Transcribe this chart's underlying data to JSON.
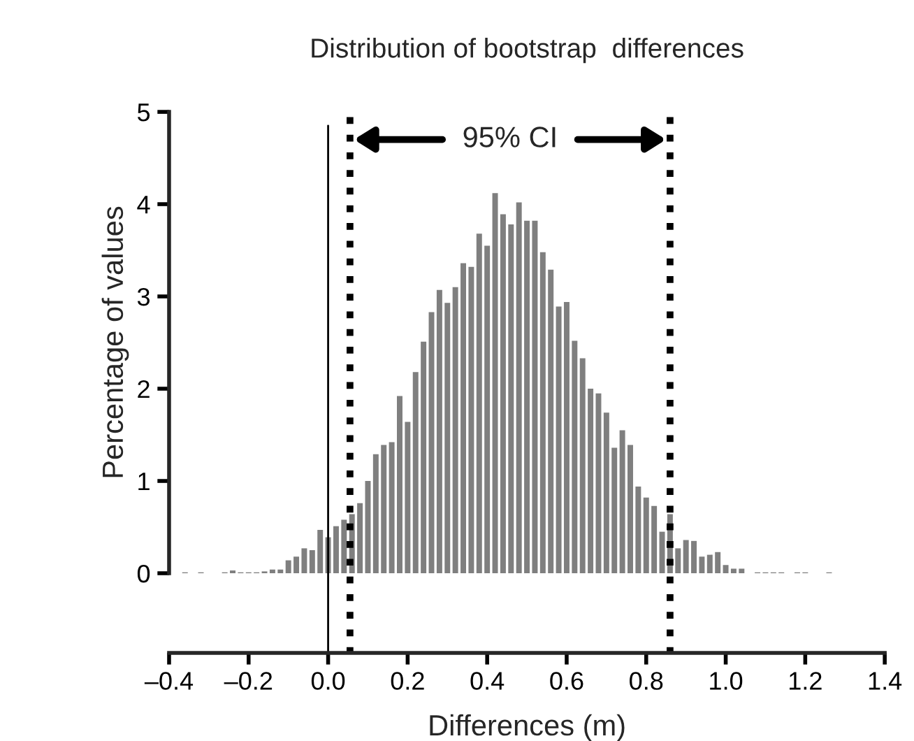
{
  "chart_data": {
    "type": "histogram",
    "title": "Distribution of bootstrap  differences",
    "xlabel": "Differences (m)",
    "ylabel": "Percentage of values",
    "bins": [
      -0.37,
      -0.35,
      -0.33,
      -0.31,
      -0.29,
      -0.27,
      -0.25,
      -0.23,
      -0.21,
      -0.19,
      -0.17,
      -0.15,
      -0.13,
      -0.11,
      -0.09,
      -0.07,
      -0.05,
      -0.03,
      -0.01,
      0.01,
      0.03,
      0.05,
      0.07,
      0.09,
      0.11,
      0.13,
      0.15,
      0.17,
      0.19,
      0.21,
      0.23,
      0.25,
      0.27,
      0.29,
      0.31,
      0.33,
      0.35,
      0.37,
      0.39,
      0.41,
      0.43,
      0.45,
      0.47,
      0.49,
      0.51,
      0.53,
      0.55,
      0.57,
      0.59,
      0.61,
      0.63,
      0.65,
      0.67,
      0.69,
      0.71,
      0.73,
      0.75,
      0.77,
      0.79,
      0.81,
      0.83,
      0.85,
      0.87,
      0.89,
      0.91,
      0.93,
      0.95,
      0.97,
      0.99,
      1.01,
      1.03,
      1.05,
      1.07,
      1.09,
      1.11,
      1.13,
      1.15,
      1.17,
      1.19,
      1.21,
      1.23,
      1.25,
      1.27
    ],
    "values": [
      0.01,
      0,
      0.01,
      0,
      0,
      0.01,
      0.03,
      0.01,
      0.01,
      0.01,
      0.02,
      0.04,
      0.04,
      0.14,
      0.18,
      0.27,
      0.25,
      0.47,
      0.39,
      0.51,
      0.58,
      0.64,
      0.76,
      1.0,
      1.29,
      1.39,
      1.42,
      1.92,
      1.64,
      2.18,
      2.51,
      2.83,
      3.07,
      2.93,
      3.1,
      3.36,
      3.32,
      3.68,
      3.55,
      4.12,
      3.89,
      3.78,
      4.02,
      3.82,
      3.82,
      3.48,
      3.29,
      2.89,
      2.94,
      2.52,
      2.33,
      2.0,
      1.95,
      1.74,
      1.36,
      1.55,
      1.39,
      0.94,
      0.82,
      0.73,
      0.45,
      0.64,
      0.27,
      0.36,
      0.35,
      0.18,
      0.2,
      0.23,
      0.09,
      0.05,
      0.05,
      0,
      0.01,
      0.01,
      0.01,
      0.01,
      0,
      0.01,
      0.01,
      0,
      0,
      0.01
    ],
    "color": "#7f7f7f",
    "xlim": [
      -0.4,
      1.4
    ],
    "xticks": [
      {
        "value": -0.4,
        "label": "–0.4"
      },
      {
        "value": -0.2,
        "label": "–0.2"
      },
      {
        "value": 0.0,
        "label": "0.0"
      },
      {
        "value": 0.2,
        "label": "0.2"
      },
      {
        "value": 0.4,
        "label": "0.4"
      },
      {
        "value": 0.6,
        "label": "0.6"
      },
      {
        "value": 0.8,
        "label": "0.8"
      },
      {
        "value": 1.0,
        "label": "1.0"
      },
      {
        "value": 1.2,
        "label": "1.2"
      },
      {
        "value": 1.4,
        "label": "1.4"
      }
    ],
    "ylim": [
      0,
      5
    ],
    "yticks": [
      0,
      1,
      2,
      3,
      4,
      5
    ],
    "ref_lines": [
      {
        "axis": "x",
        "value": 0,
        "color": "#000000",
        "line_style": "solid"
      },
      {
        "axis": "x",
        "value": 0.055,
        "color": "#000000",
        "line_style": "dotted"
      },
      {
        "axis": "x",
        "value": 0.86,
        "color": "#000000",
        "line_style": "dotted"
      }
    ],
    "annotations": [
      "95% CI"
    ],
    "grid": false
  }
}
